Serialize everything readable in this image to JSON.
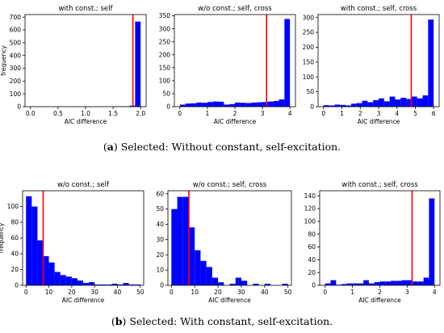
{
  "captions": {
    "a_label": "a",
    "a_text": "Selected: Without constant, self-excitation.",
    "b_label": "b",
    "b_text": "Selected: With constant, self-excitation."
  },
  "colors": {
    "bar": "#0000ff",
    "vline": "#ff0000",
    "axis": "#000000"
  },
  "chart_data": [
    {
      "type": "bar",
      "title": "with const.; self",
      "xlabel": "AIC difference",
      "ylabel": "frequency",
      "xlim": [
        -0.1,
        2.1
      ],
      "ylim": [
        0,
        720
      ],
      "xticks": [
        0.0,
        0.5,
        1.0,
        1.5,
        2.0
      ],
      "xtick_labels": [
        "0.0",
        "0.5",
        "1.0",
        "1.5",
        "2.0"
      ],
      "yticks": [
        0,
        100,
        200,
        300,
        400,
        500,
        600,
        700
      ],
      "bin_edges": [
        0,
        0.1,
        0.2,
        0.3,
        0.4,
        0.5,
        0.6,
        0.7,
        0.8,
        0.9,
        1.0,
        1.1,
        1.2,
        1.3,
        1.4,
        1.5,
        1.6,
        1.7,
        1.8,
        1.9,
        2.0
      ],
      "values": [
        2,
        2,
        1,
        1,
        1,
        2,
        1,
        1,
        2,
        1,
        3,
        1,
        1,
        2,
        1,
        3,
        2,
        3,
        8,
        665
      ],
      "vline": 1.86
    },
    {
      "type": "bar",
      "title": "w/o const.; self, cross",
      "xlabel": "AIC difference",
      "ylabel": "",
      "xlim": [
        -0.2,
        4.2
      ],
      "ylim": [
        0,
        355
      ],
      "xticks": [
        0,
        1,
        2,
        3,
        4
      ],
      "xtick_labels": [
        "0",
        "1",
        "2",
        "3",
        "4"
      ],
      "yticks": [
        0,
        50,
        100,
        150,
        200,
        250,
        300,
        350
      ],
      "bin_edges": [
        0,
        0.2,
        0.4,
        0.6,
        0.8,
        1.0,
        1.2,
        1.4,
        1.6,
        1.8,
        2.0,
        2.2,
        2.4,
        2.6,
        2.8,
        3.0,
        3.2,
        3.4,
        3.6,
        3.8,
        4.0
      ],
      "values": [
        8,
        12,
        13,
        16,
        15,
        18,
        20,
        19,
        8,
        10,
        16,
        15,
        14,
        16,
        17,
        18,
        20,
        22,
        28,
        338
      ],
      "vline": 3.15
    },
    {
      "type": "bar",
      "title": "with const.; self, cross",
      "xlabel": "AIC difference",
      "ylabel": "",
      "xlim": [
        -0.3,
        6.3
      ],
      "ylim": [
        0,
        310
      ],
      "xticks": [
        0,
        1,
        2,
        3,
        4,
        5,
        6
      ],
      "xtick_labels": [
        "0",
        "1",
        "2",
        "3",
        "4",
        "5",
        "6"
      ],
      "yticks": [
        0,
        50,
        100,
        150,
        200,
        250,
        300
      ],
      "bin_edges": [
        0,
        0.3,
        0.6,
        0.9,
        1.2,
        1.5,
        1.8,
        2.1,
        2.4,
        2.7,
        3.0,
        3.3,
        3.6,
        3.9,
        4.2,
        4.5,
        4.8,
        5.1,
        5.4,
        5.7,
        6.0
      ],
      "values": [
        5,
        4,
        7,
        6,
        4,
        10,
        12,
        20,
        15,
        22,
        28,
        18,
        34,
        24,
        30,
        26,
        34,
        28,
        38,
        293
      ],
      "vline": 4.78
    },
    {
      "type": "bar",
      "title": "w/o const.; self",
      "xlabel": "AIC difference",
      "ylabel": "frequency",
      "xlim": [
        -1.5,
        51.5
      ],
      "ylim": [
        0,
        120
      ],
      "xticks": [
        0,
        10,
        20,
        30,
        40,
        50
      ],
      "xtick_labels": [
        "0",
        "10",
        "20",
        "30",
        "40",
        "50"
      ],
      "yticks": [
        0,
        20,
        40,
        60,
        80,
        100
      ],
      "bin_edges": [
        0,
        2.5,
        5,
        7.5,
        10,
        12.5,
        15,
        17.5,
        20,
        22.5,
        25,
        27.5,
        30,
        32.5,
        35,
        37.5,
        40,
        42.5,
        45,
        47.5,
        50
      ],
      "values": [
        113,
        100,
        57,
        37,
        29,
        17,
        13,
        11,
        9,
        6,
        3,
        4,
        1,
        1,
        1,
        2,
        1,
        3,
        1,
        1
      ],
      "vline": 7.5
    },
    {
      "type": "bar",
      "title": "w/o const.; self, cross",
      "xlabel": "AIC difference",
      "ylabel": "",
      "xlim": [
        -1.5,
        51.5
      ],
      "ylim": [
        0,
        62
      ],
      "xticks": [
        0,
        10,
        20,
        30,
        40,
        50
      ],
      "xtick_labels": [
        "0",
        "10",
        "20",
        "30",
        "40",
        "50"
      ],
      "yticks": [
        0,
        10,
        20,
        30,
        40,
        50,
        60
      ],
      "bin_edges": [
        0,
        2.5,
        5,
        7.5,
        10,
        12.5,
        15,
        17.5,
        20,
        22.5,
        25,
        27.5,
        30,
        32.5,
        35,
        37.5,
        40,
        42.5,
        45,
        47.5,
        50
      ],
      "values": [
        50,
        58,
        58,
        38,
        23,
        16,
        12,
        5,
        2,
        0,
        1,
        5,
        3,
        0,
        1,
        0,
        1,
        0,
        0,
        1
      ],
      "vline": 7.5
    },
    {
      "type": "bar",
      "title": "with const.; self, cross",
      "xlabel": "AIC difference",
      "ylabel": "",
      "xlim": [
        -0.2,
        4.2
      ],
      "ylim": [
        0,
        148
      ],
      "xticks": [
        0,
        1,
        2,
        3,
        4
      ],
      "xtick_labels": [
        "0",
        "1",
        "2",
        "3",
        "4"
      ],
      "yticks": [
        0,
        20,
        40,
        60,
        80,
        100,
        120,
        140
      ],
      "bin_edges": [
        0,
        0.2,
        0.4,
        0.6,
        0.8,
        1.0,
        1.2,
        1.4,
        1.6,
        1.8,
        2.0,
        2.2,
        2.4,
        2.6,
        2.8,
        3.0,
        3.2,
        3.4,
        3.6,
        3.8,
        4.0
      ],
      "values": [
        3,
        8,
        1,
        2,
        3,
        3,
        3,
        8,
        3,
        5,
        6,
        6,
        7,
        7,
        8,
        8,
        6,
        6,
        12,
        136
      ],
      "vline": 3.18
    }
  ]
}
